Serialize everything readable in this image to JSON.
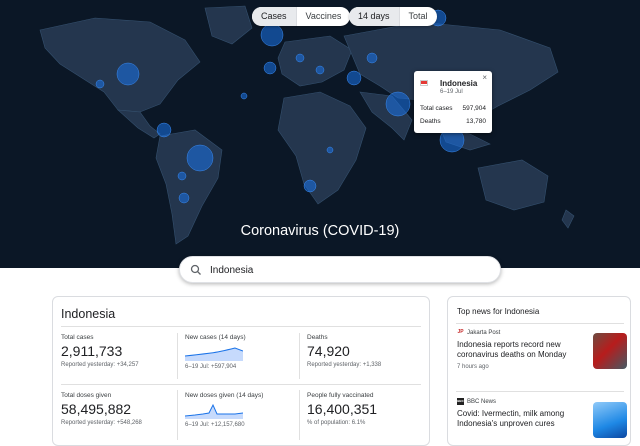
{
  "toggles": {
    "metric": [
      {
        "label": "Cases",
        "selected": true
      },
      {
        "label": "Vaccines",
        "selected": false
      }
    ],
    "range": [
      {
        "label": "14 days",
        "selected": true
      },
      {
        "label": "Total",
        "selected": false
      }
    ]
  },
  "popup": {
    "country": "Indonesia",
    "dates": "6–19 Jul",
    "close": "×",
    "rows": [
      {
        "label": "Total cases",
        "value": "597,904"
      },
      {
        "label": "Deaths",
        "value": "13,780"
      }
    ]
  },
  "hero_title": "Coronavirus (COVID-19)",
  "search": {
    "value": "Indonesia"
  },
  "stats": {
    "country": "Indonesia",
    "cells": [
      {
        "label": "Total cases",
        "value": "2,911,733",
        "sub": "Reported yesterday: +34,257"
      },
      {
        "label": "New cases (14 days)",
        "value": "",
        "sub": "6–19 Jul: +597,904"
      },
      {
        "label": "Deaths",
        "value": "74,920",
        "sub": "Reported yesterday: +1,338"
      },
      {
        "label": "Total doses given",
        "value": "58,495,882",
        "sub": "Reported yesterday: +548,268"
      },
      {
        "label": "New doses given (14 days)",
        "value": "",
        "sub": "6–19 Jul: +12,157,680"
      },
      {
        "label": "People fully vaccinated",
        "value": "16,400,351",
        "sub": "% of population: 6.1%"
      }
    ]
  },
  "news": {
    "header": "Top news for Indonesia",
    "items": [
      {
        "source": "Jakarta Post",
        "logo": "JP",
        "headline": "Indonesia reports record new coronavirus deaths on Monday",
        "time": "7 hours ago"
      },
      {
        "source": "BBC News",
        "logo": "BBC",
        "headline": "Covid: Ivermectin, milk among Indonesia's unproven cures",
        "time": ""
      }
    ]
  },
  "colors": {
    "map_bg": "#0b1726",
    "land": "#24364e",
    "bubble": "#1a73e8",
    "accent": "#1a73e8"
  },
  "icons": [
    "search-icon",
    "close-icon",
    "flag-icon"
  ]
}
